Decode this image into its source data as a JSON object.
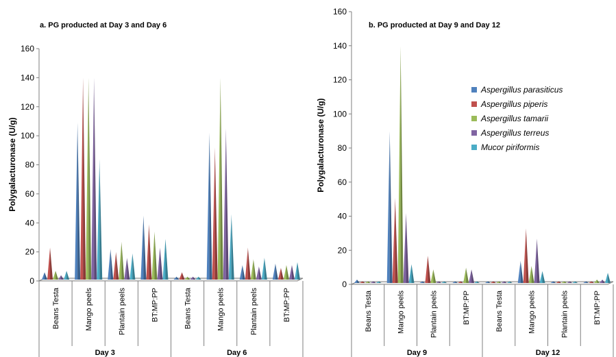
{
  "colors": {
    "Aspergillus parasiticus": "#4F81BD",
    "Aspergillus piperis": "#C0504D",
    "Aspergillus tamarii": "#9BBB59",
    "Aspergillus terreus": "#8064A2",
    "Mucor piriformis": "#4BACC6"
  },
  "chart_data": [
    {
      "type": "bar",
      "bar_shape": "pyramid",
      "title": "a. PG producted at Day 3 and Day 6",
      "ylabel": "Polygalacturonase (U/g)",
      "ylim": [
        0,
        160
      ],
      "yticks": [
        0,
        20,
        40,
        60,
        80,
        100,
        120,
        140,
        160
      ],
      "groups": [
        "Day 3",
        "Day 6"
      ],
      "categories": [
        "Beans Testa",
        "Mango peels",
        "Plantain peels",
        "BT:MP:PP",
        "Beans Testa",
        "Mango peels",
        "Plantain peels",
        "BT:MP:PP"
      ],
      "series": [
        {
          "name": "Aspergillus parasiticus",
          "values": [
            5,
            108,
            21,
            44,
            2,
            101,
            10,
            11
          ]
        },
        {
          "name": "Aspergillus piperis",
          "values": [
            22,
            139,
            19,
            38,
            5,
            91,
            22,
            8
          ]
        },
        {
          "name": "Aspergillus tamarii",
          "values": [
            6,
            139,
            26,
            33,
            2,
            139,
            14,
            10
          ]
        },
        {
          "name": "Aspergillus terreus",
          "values": [
            3,
            139,
            15,
            22,
            2,
            104,
            9,
            10
          ]
        },
        {
          "name": "Mucor piriformis",
          "values": [
            6,
            83,
            18,
            28,
            2,
            45,
            15,
            12
          ]
        }
      ],
      "grid": false,
      "legend": "none"
    },
    {
      "type": "bar",
      "bar_shape": "pyramid",
      "title": "b. PG producted at Day 9 and Day 12",
      "ylabel": "Polygalacturonase (U/g)",
      "ylim": [
        0,
        160
      ],
      "yticks": [
        0,
        20,
        40,
        60,
        80,
        100,
        120,
        140,
        160
      ],
      "groups": [
        "Day 9",
        "Day 12"
      ],
      "categories": [
        "Beans Testa",
        "Mango peels",
        "Plantain peels",
        "BT:MP:PP",
        "Beans Testa",
        "Mango peels",
        "Plantain peels",
        "BT:MP:PP"
      ],
      "series": [
        {
          "name": "Aspergillus parasiticus",
          "values": [
            2,
            89,
            1,
            1,
            1,
            13,
            1,
            1
          ]
        },
        {
          "name": "Aspergillus piperis",
          "values": [
            1,
            50,
            16,
            1,
            1,
            32,
            1,
            1
          ]
        },
        {
          "name": "Aspergillus tamarii",
          "values": [
            1,
            139,
            8,
            9,
            1,
            10,
            1,
            2
          ]
        },
        {
          "name": "Aspergillus terreus",
          "values": [
            1,
            41,
            1,
            8,
            1,
            26,
            1,
            2
          ]
        },
        {
          "name": "Mucor piriformis",
          "values": [
            1,
            11,
            1,
            1,
            1,
            7,
            1,
            6
          ]
        }
      ],
      "grid": false,
      "legend": "right, inside plot"
    }
  ]
}
